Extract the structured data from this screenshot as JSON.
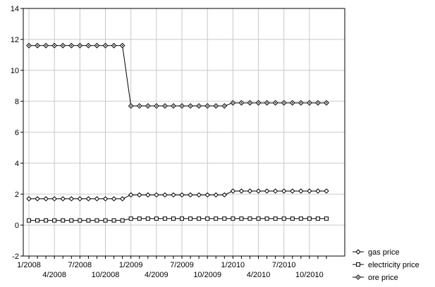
{
  "chart_data": {
    "type": "line",
    "title": "",
    "xlabel": "",
    "ylabel": "",
    "ylim": [
      -2,
      14
    ],
    "y_ticks": [
      "-2",
      "0",
      "2",
      "4",
      "6",
      "8",
      "10",
      "12",
      "14"
    ],
    "x_tick_labels_row1": [
      "1/2008",
      "7/2008",
      "1/2009",
      "7/2009",
      "1/2010",
      "7/2010"
    ],
    "x_tick_labels_row2": [
      "4/2008",
      "10/2008",
      "4/2009",
      "10/2009",
      "4/2010",
      "10/2010"
    ],
    "x_months": [
      "1/2008",
      "2/2008",
      "3/2008",
      "4/2008",
      "5/2008",
      "6/2008",
      "7/2008",
      "8/2008",
      "9/2008",
      "10/2008",
      "11/2008",
      "12/2008",
      "1/2009",
      "2/2009",
      "3/2009",
      "4/2009",
      "5/2009",
      "6/2009",
      "7/2009",
      "8/2009",
      "9/2009",
      "10/2009",
      "11/2009",
      "12/2009",
      "1/2010",
      "2/2010",
      "3/2010",
      "4/2010",
      "5/2010",
      "6/2010",
      "7/2010",
      "8/2010",
      "9/2010",
      "10/2010",
      "11/2010",
      "12/2010"
    ],
    "grid": true,
    "legend_position": "bottom-right",
    "series": [
      {
        "name": "gas price",
        "marker": "diamond",
        "values": [
          1.7,
          1.7,
          1.7,
          1.7,
          1.7,
          1.7,
          1.7,
          1.7,
          1.7,
          1.7,
          1.7,
          1.7,
          1.95,
          1.95,
          1.95,
          1.95,
          1.95,
          1.95,
          1.95,
          1.95,
          1.95,
          1.95,
          1.95,
          1.95,
          2.2,
          2.2,
          2.2,
          2.2,
          2.2,
          2.2,
          2.2,
          2.2,
          2.2,
          2.2,
          2.2,
          2.2
        ]
      },
      {
        "name": "electricity price",
        "marker": "square",
        "values": [
          0.3,
          0.3,
          0.3,
          0.3,
          0.3,
          0.3,
          0.3,
          0.3,
          0.3,
          0.3,
          0.3,
          0.3,
          0.42,
          0.42,
          0.42,
          0.42,
          0.42,
          0.42,
          0.42,
          0.42,
          0.42,
          0.42,
          0.42,
          0.42,
          0.42,
          0.42,
          0.42,
          0.42,
          0.42,
          0.42,
          0.42,
          0.42,
          0.42,
          0.42,
          0.42,
          0.42
        ]
      },
      {
        "name": "ore price",
        "marker": "circle-diamond",
        "values": [
          11.6,
          11.6,
          11.6,
          11.6,
          11.6,
          11.6,
          11.6,
          11.6,
          11.6,
          11.6,
          11.6,
          11.6,
          7.7,
          7.7,
          7.7,
          7.7,
          7.7,
          7.7,
          7.7,
          7.7,
          7.7,
          7.7,
          7.7,
          7.7,
          7.9,
          7.9,
          7.9,
          7.9,
          7.9,
          7.9,
          7.9,
          7.9,
          7.9,
          7.9,
          7.9,
          7.9
        ]
      }
    ]
  }
}
